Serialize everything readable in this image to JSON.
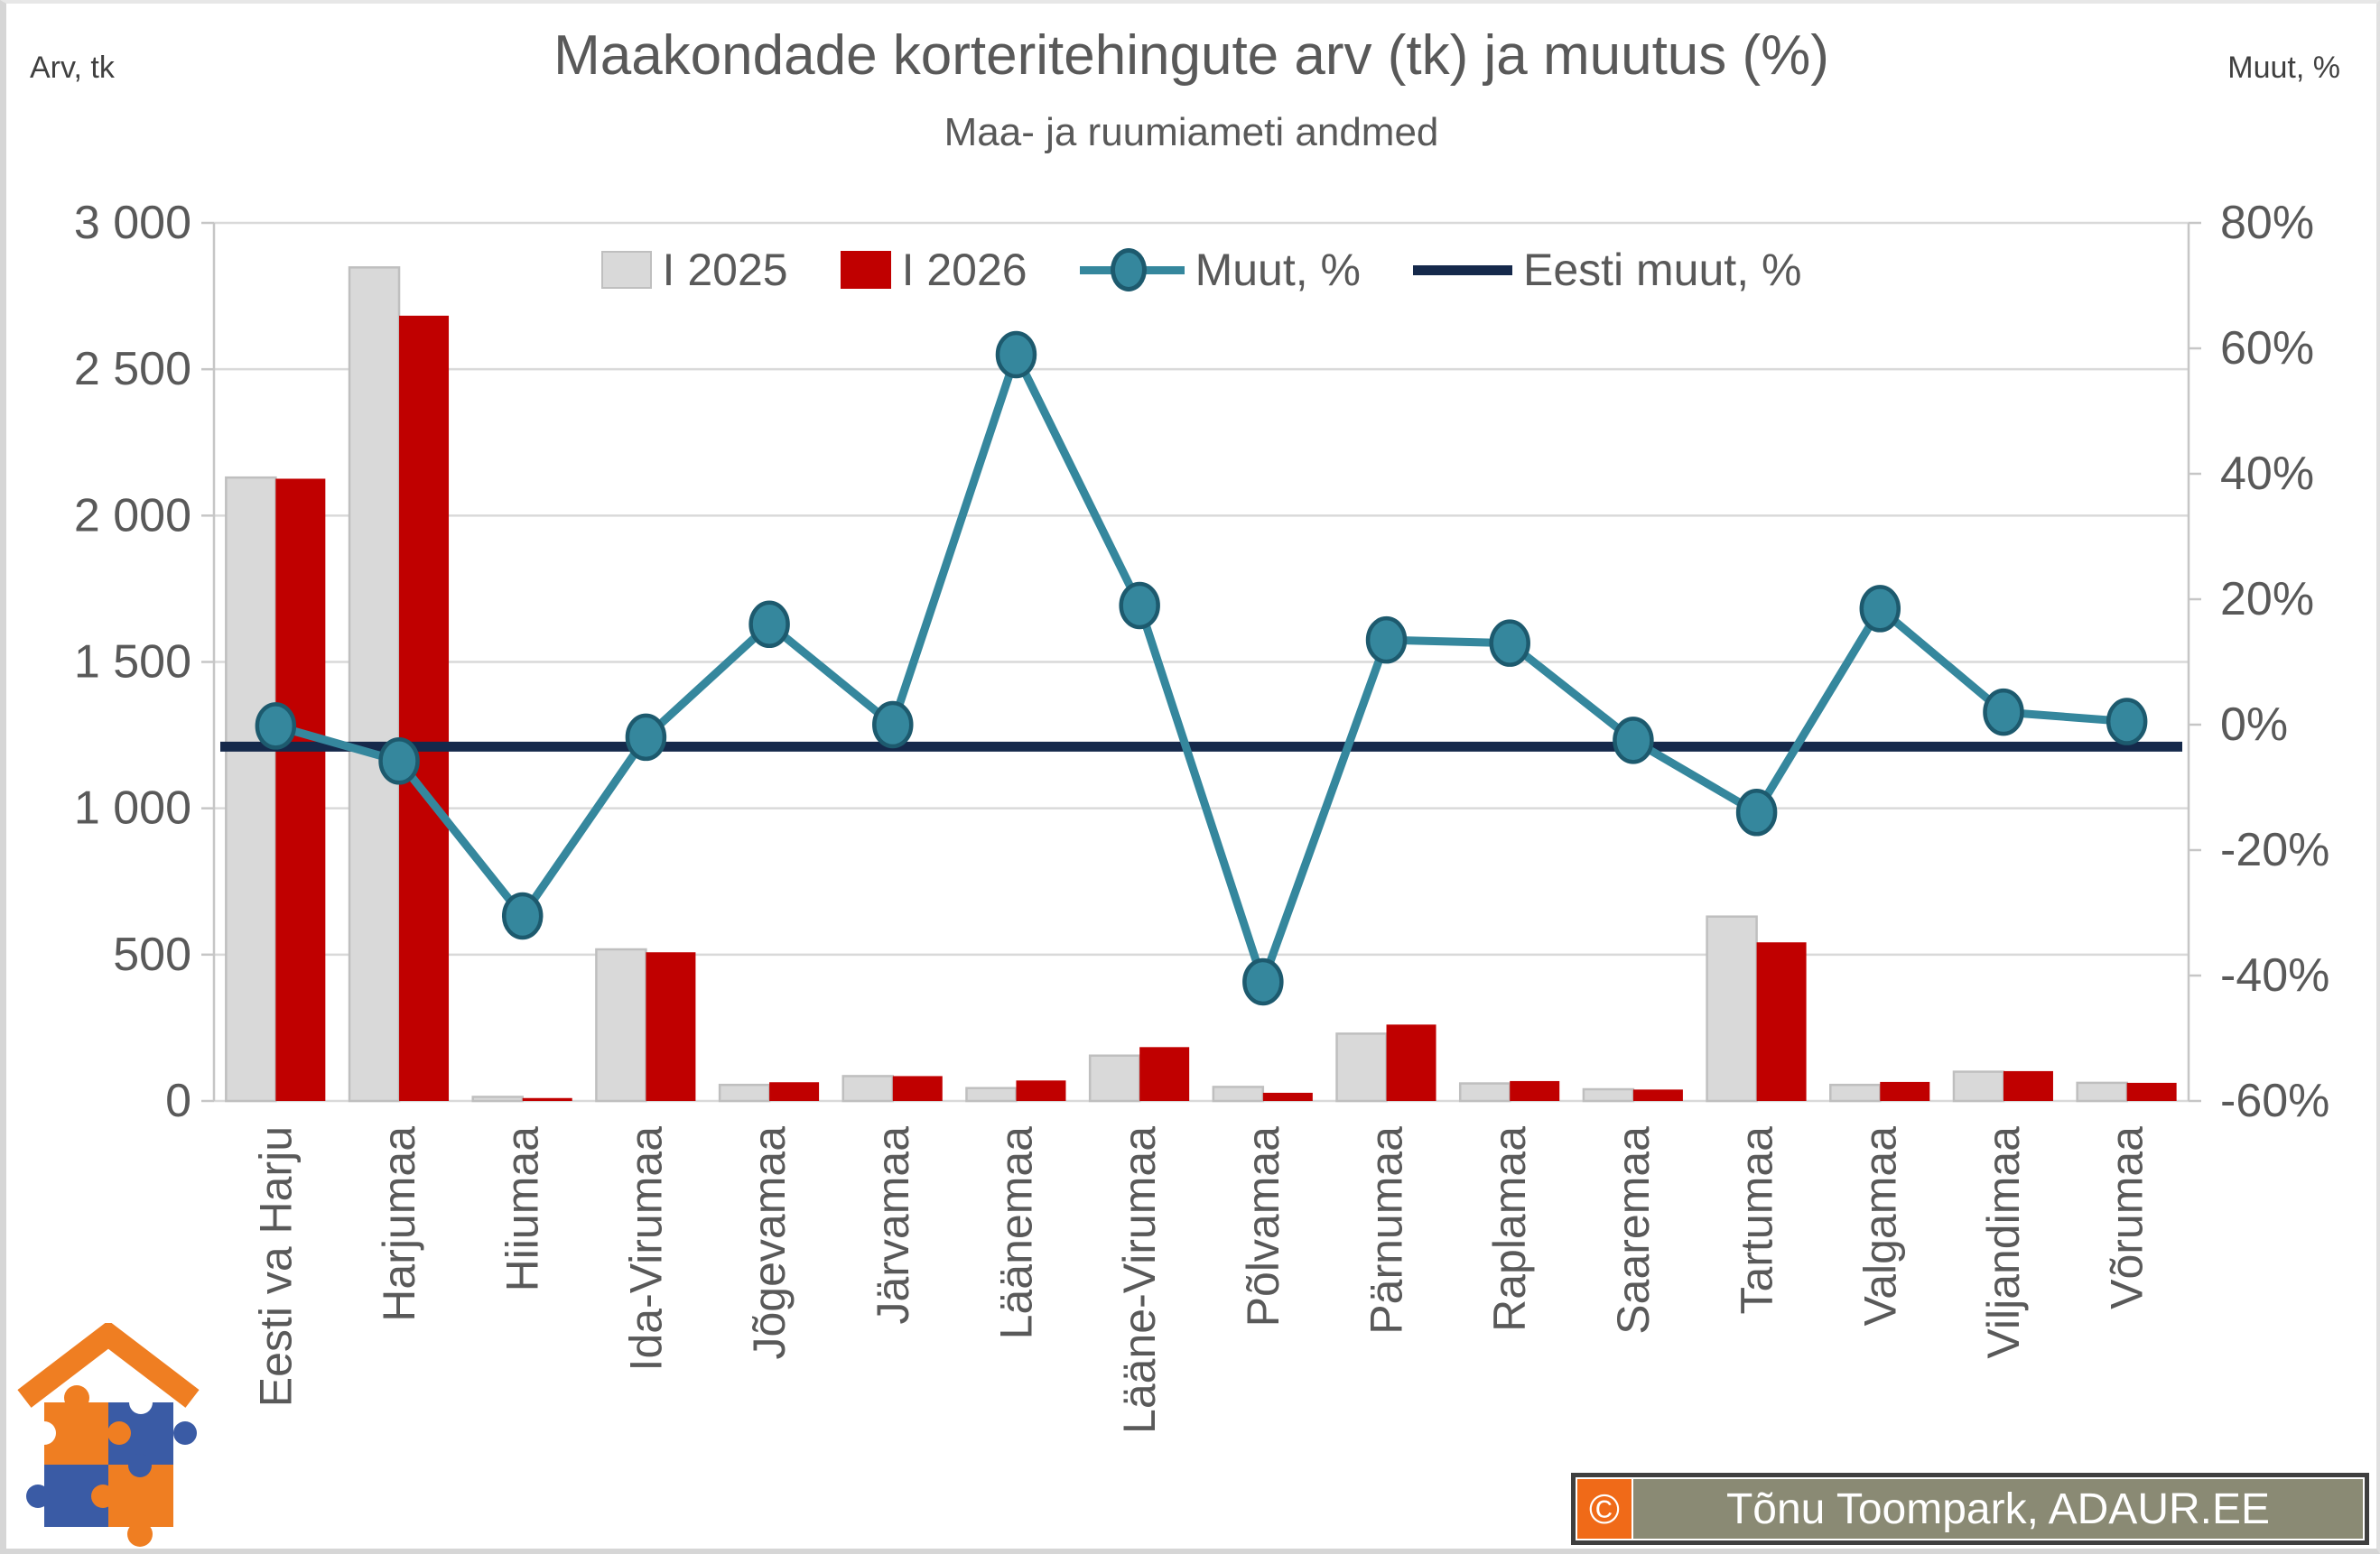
{
  "header": {
    "title": "Maakondade korteritehingute arv (tk) ja muutus (%)",
    "subtitle": "Maa- ja ruumiameti andmed",
    "left_axis_unit": "Arv, tk",
    "right_axis_unit": "Muut, %"
  },
  "legend": {
    "items": [
      {
        "label": "I 2025",
        "type": "box",
        "fill": "#d9d9d9",
        "border": "#bfbfbf"
      },
      {
        "label": "I 2026",
        "type": "box",
        "fill": "#c00000",
        "border": "#c00000"
      },
      {
        "label": "Muut, %",
        "type": "marker-line",
        "color": "#35879d",
        "marker_border": "#1d5a6e"
      },
      {
        "label": "Eesti muut, %",
        "type": "line",
        "color": "#15294b"
      }
    ]
  },
  "watermark": {
    "copyright_symbol": "©",
    "text": "Tõnu Toompark, ADAUR.EE",
    "frame_color": "#3f3f3f",
    "background_color": "#8a8a74",
    "copyright_box_color": "#f06a18",
    "text_color": "#ffffff"
  },
  "logo": {
    "name": "house-puzzle-logo",
    "orange": "#ef7e22",
    "blue": "#3a5ba5"
  },
  "chart_data": {
    "type": "bar+line combo",
    "title": "Maakondade korteritehingute arv (tk) ja muutus (%)",
    "subtitle": "Maa- ja ruumiameti andmed",
    "grid": true,
    "legend_position": "top-center",
    "categories": [
      "Eesti va Harju",
      "Harjumaa",
      "Hiiumaa",
      "Ida-Virumaa",
      "Jõgevamaa",
      "Järvamaa",
      "Läänemaa",
      "Lääne-Virumaa",
      "Põlvamaa",
      "Pärnumaa",
      "Raplamaa",
      "Saaremaa",
      "Tartumaa",
      "Valgamaa",
      "Viljandimaa",
      "Võrumaa"
    ],
    "series": [
      {
        "name": "I 2025",
        "type": "bar",
        "axis": "left",
        "color": "#d9d9d9",
        "border": "#bfbfbf",
        "values": [
          2130,
          2848,
          14,
          518,
          55,
          85,
          44,
          155,
          48,
          230,
          60,
          40,
          630,
          55,
          100,
          62
        ]
      },
      {
        "name": "I 2026",
        "type": "bar",
        "axis": "left",
        "color": "#c00000",
        "border": "#c00000",
        "values": [
          2126,
          2683,
          10,
          508,
          64,
          85,
          70,
          184,
          28,
          261,
          68,
          39,
          542,
          65,
          102,
          62
        ]
      },
      {
        "name": "Muut, %",
        "type": "line",
        "axis": "right",
        "color": "#35879d",
        "marker_border": "#1d5a6e",
        "values": [
          -0.2,
          -5.8,
          -30.5,
          -2,
          16,
          0,
          59,
          19,
          -41,
          13.5,
          13,
          -2.5,
          -14,
          18.5,
          2,
          0.5
        ]
      },
      {
        "name": "Eesti muut, %",
        "type": "constant-line",
        "axis": "right",
        "color": "#15294b",
        "value": -3.5
      }
    ],
    "left_axis": {
      "label": "Arv, tk",
      "min": 0,
      "max": 3000,
      "step": 500,
      "ticks": [
        0,
        500,
        1000,
        1500,
        2000,
        2500,
        3000
      ],
      "tick_labels": [
        "0",
        "500",
        "1 000",
        "1 500",
        "2 000",
        "2 500",
        "3 000"
      ]
    },
    "right_axis": {
      "label": "Muut, %",
      "min": -60,
      "max": 80,
      "step": 20,
      "ticks": [
        -60,
        -40,
        -20,
        0,
        20,
        40,
        60,
        80
      ],
      "tick_labels": [
        "-60%",
        "-40%",
        "-20%",
        "0%",
        "20%",
        "40%",
        "60%",
        "80%"
      ]
    }
  }
}
